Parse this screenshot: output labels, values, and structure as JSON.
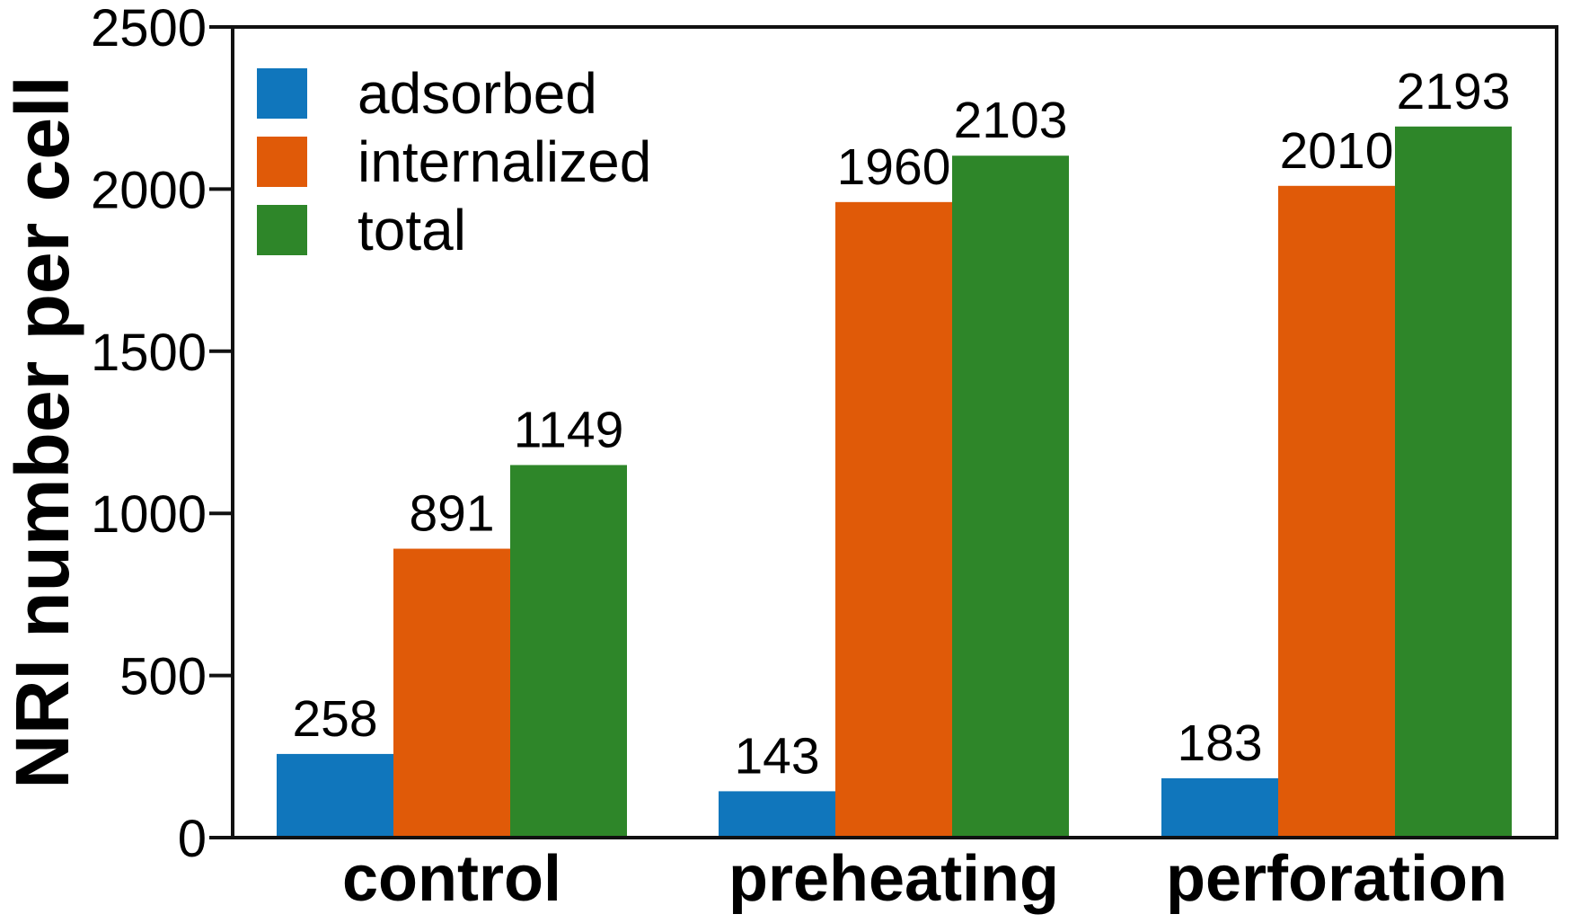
{
  "chart_data": {
    "type": "bar",
    "title": "",
    "categories": [
      "control",
      "preheating",
      "perforation"
    ],
    "series": [
      {
        "name": "adsorbed",
        "color": "#1076BC",
        "values": [
          258,
          143,
          183
        ]
      },
      {
        "name": "internalized",
        "color": "#E05A08",
        "values": [
          891,
          1960,
          2010
        ]
      },
      {
        "name": "total",
        "color": "#2E8629",
        "values": [
          1149,
          2103,
          2193
        ]
      }
    ],
    "bar_value_labels": [
      [
        258,
        891,
        1149
      ],
      [
        143,
        1960,
        2103
      ],
      [
        183,
        2010,
        2193
      ]
    ],
    "xlabel": "",
    "ylabel": "NRI number per cell",
    "ylim": [
      0,
      2500
    ],
    "yticks": [
      0,
      500,
      1000,
      1500,
      2000,
      2500
    ],
    "grid": false,
    "frame": true,
    "legend_position": "upper-left",
    "legend_entries": [
      "adsorbed",
      "internalized",
      "total"
    ],
    "colors": {
      "axis": "#111111",
      "text": "#000000",
      "background": "#FFFFFF"
    }
  }
}
